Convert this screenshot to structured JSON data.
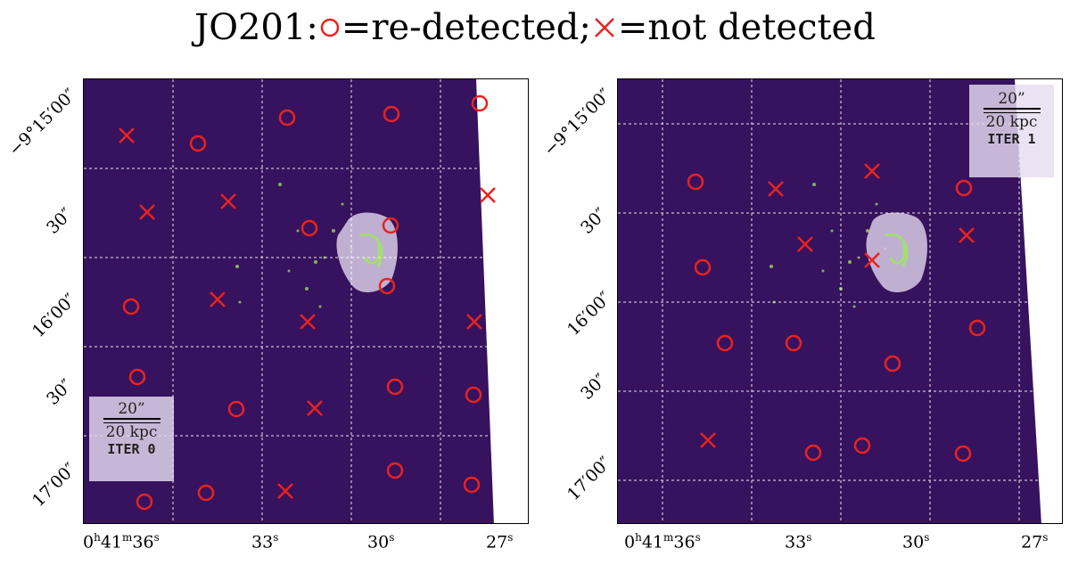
{
  "title": {
    "prefix": "JO201:",
    "circle_text": "=re-detected;",
    "cross_text": "=not detected",
    "marker_color": "#e8231f"
  },
  "panels": [
    {
      "scale_arcsec": "20”",
      "scale_kpc": "20 kpc",
      "iter_label": "ITER 0",
      "y_ticks": [
        "−9°15′00″",
        "30″",
        "16′00″",
        "30″",
        "17′00″"
      ],
      "x_ticks": [
        {
          "main": "0",
          "h": "h",
          "m_num": "41",
          "m": "m",
          "s_num": "36",
          "s": "s"
        },
        {
          "main": "33",
          "s": "s"
        },
        {
          "main": "30",
          "s": "s"
        },
        {
          "main": "27",
          "s": "s"
        }
      ]
    },
    {
      "scale_arcsec": "20”",
      "scale_kpc": "20 kpc",
      "iter_label": "ITER 1",
      "y_ticks": [
        "−9°15′00″",
        "30″",
        "16′00″",
        "30″",
        "17′00″"
      ],
      "x_ticks": [
        {
          "main": "0",
          "h": "h",
          "m_num": "41",
          "m": "m",
          "s_num": "36",
          "s": "s"
        },
        {
          "main": "33",
          "s": "s"
        },
        {
          "main": "30",
          "s": "s"
        },
        {
          "main": "27",
          "s": "s"
        }
      ]
    }
  ],
  "colors": {
    "background": "#37125e",
    "galaxy_mask": "#d7cde6",
    "emission": "#9ee85a"
  }
}
